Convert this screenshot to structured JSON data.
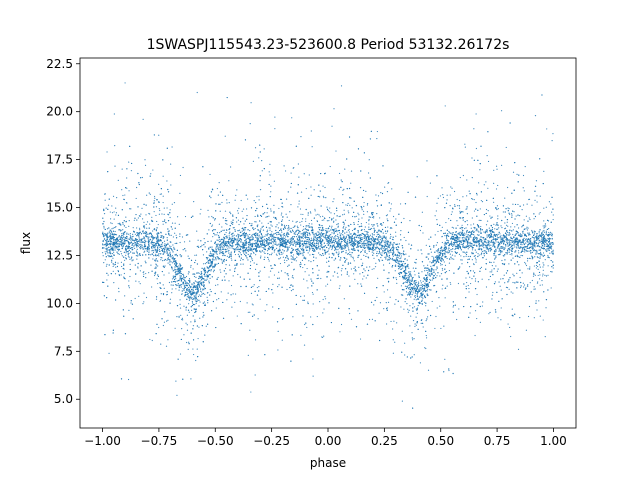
{
  "chart_data": {
    "type": "scatter",
    "title": "1SWASPJ115543.23-523600.8 Period 53132.26172s",
    "xlabel": "phase",
    "ylabel": "flux",
    "xlim": [
      -1.1,
      1.1
    ],
    "ylim": [
      3.5,
      22.8
    ],
    "xticks": [
      -1.0,
      -0.75,
      -0.5,
      -0.25,
      0.0,
      0.25,
      0.5,
      0.75,
      1.0
    ],
    "xtick_labels": [
      "−1.00",
      "−0.75",
      "−0.50",
      "−0.25",
      "0.00",
      "0.25",
      "0.50",
      "0.75",
      "1.00"
    ],
    "yticks": [
      5.0,
      7.5,
      10.0,
      12.5,
      15.0,
      17.5,
      20.0,
      22.5
    ],
    "ytick_labels": [
      "5.0",
      "7.5",
      "10.0",
      "12.5",
      "15.0",
      "17.5",
      "20.0",
      "22.5"
    ],
    "grid": false,
    "series": [
      {
        "color": "#1f77b4",
        "marker_size": 0.6,
        "phase_range": [
          -1.0,
          1.0
        ],
        "baseline_flux": 13.2,
        "eclipse_phases": [
          -0.6,
          0.4
        ],
        "eclipse_min_flux": 10.6,
        "points": [
          [
            -1.0,
            13.1
          ],
          [
            -0.95,
            13.3
          ],
          [
            -0.9,
            13.2
          ],
          [
            -0.85,
            13.1
          ],
          [
            -0.8,
            12.9
          ],
          [
            -0.75,
            12.6
          ],
          [
            -0.7,
            12.0
          ],
          [
            -0.65,
            11.2
          ],
          [
            -0.6,
            10.6
          ],
          [
            -0.55,
            11.1
          ],
          [
            -0.5,
            12.0
          ],
          [
            -0.45,
            12.7
          ],
          [
            -0.4,
            13.0
          ],
          [
            -0.35,
            13.2
          ],
          [
            -0.3,
            13.2
          ],
          [
            -0.25,
            13.2
          ],
          [
            -0.2,
            13.3
          ],
          [
            -0.15,
            13.2
          ],
          [
            -0.1,
            13.1
          ],
          [
            -0.05,
            13.2
          ],
          [
            0.0,
            13.2
          ],
          [
            0.05,
            13.1
          ],
          [
            0.1,
            13.2
          ],
          [
            0.15,
            13.1
          ],
          [
            0.2,
            12.9
          ],
          [
            0.25,
            12.6
          ],
          [
            0.3,
            12.0
          ],
          [
            0.35,
            11.2
          ],
          [
            0.4,
            10.6
          ],
          [
            0.45,
            11.1
          ],
          [
            0.5,
            12.0
          ],
          [
            0.55,
            12.7
          ],
          [
            0.6,
            13.0
          ],
          [
            0.65,
            13.2
          ],
          [
            0.7,
            13.2
          ],
          [
            0.75,
            13.2
          ],
          [
            0.8,
            13.3
          ],
          [
            0.85,
            13.2
          ],
          [
            0.9,
            13.1
          ],
          [
            0.95,
            13.2
          ],
          [
            1.0,
            13.1
          ],
          [
            -0.98,
            17.9
          ],
          [
            -0.82,
            19.6
          ],
          [
            -0.71,
            8.1
          ],
          [
            -0.62,
            7.6
          ],
          [
            -0.58,
            21.0
          ],
          [
            -0.44,
            16.4
          ],
          [
            -0.31,
            9.2
          ],
          [
            -0.12,
            18.7
          ],
          [
            0.06,
            8.9
          ],
          [
            0.18,
            16.8
          ],
          [
            0.29,
            7.4
          ],
          [
            0.41,
            6.9
          ],
          [
            0.52,
            20.3
          ],
          [
            0.63,
            9.5
          ],
          [
            0.77,
            17.2
          ],
          [
            0.88,
            8.6
          ],
          [
            0.97,
            19.1
          ],
          [
            -0.67,
            5.2
          ],
          [
            0.33,
            4.9
          ],
          [
            -0.9,
            21.5
          ]
        ]
      }
    ]
  }
}
